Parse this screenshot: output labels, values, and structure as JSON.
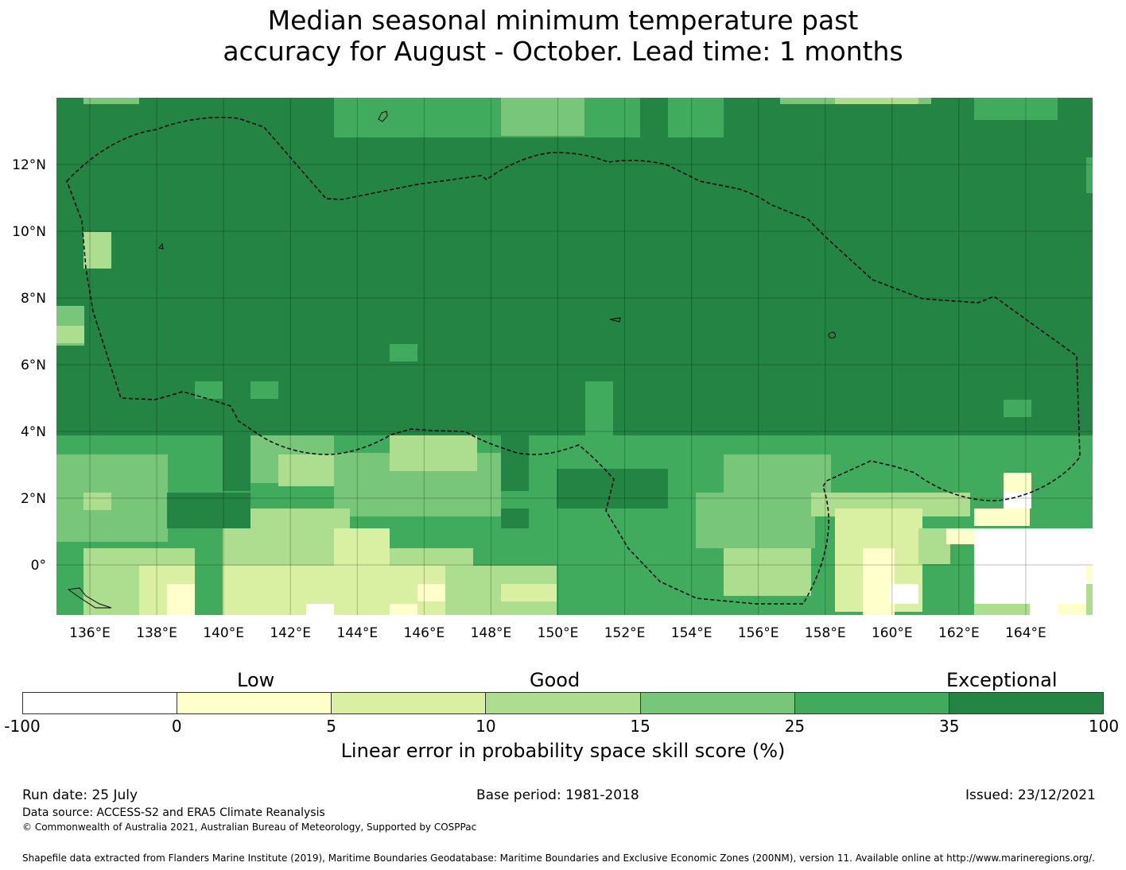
{
  "title_line1": "Median seasonal minimum temperature past",
  "title_line2": "accuracy for August - October. Lead time: 1 months",
  "map": {
    "lon_range": [
      135,
      166
    ],
    "lat_range": [
      -1.5,
      14
    ],
    "lon_ticks": [
      136,
      138,
      140,
      142,
      144,
      146,
      148,
      150,
      152,
      154,
      156,
      158,
      160,
      162,
      164
    ],
    "lon_tick_labels": [
      "136°E",
      "138°E",
      "140°E",
      "142°E",
      "144°E",
      "146°E",
      "148°E",
      "150°E",
      "152°E",
      "154°E",
      "156°E",
      "158°E",
      "160°E",
      "162°E",
      "164°E"
    ],
    "lat_ticks": [
      12,
      10,
      8,
      6,
      4,
      2,
      0
    ],
    "lat_tick_labels": [
      "12°N",
      "10°N",
      "8°N",
      "6°N",
      "4°N",
      "2°N",
      "0°"
    ],
    "grid": true,
    "boundary": "dashed EEZ outline"
  },
  "colorbar": {
    "categories": [
      {
        "label": "Low"
      },
      {
        "label": "Good"
      },
      {
        "label": "Exceptional"
      }
    ],
    "colors": [
      "#ffffff",
      "#ffffcc",
      "#d9f0a3",
      "#addd8e",
      "#78c679",
      "#41ab5d",
      "#238443"
    ],
    "boundaries": [
      "-100",
      "0",
      "5",
      "10",
      "15",
      "25",
      "35",
      "100"
    ],
    "label": "Linear error in probability space skill score (%)"
  },
  "footer": {
    "run_date": "Run date: 25 July",
    "base_period": "Base period: 1981-2018",
    "issued": "Issued: 23/12/2021",
    "data_source": "Data source: ACCESS-S2 and ERA5 Climate Reanalysis",
    "copyright": "© Commonwealth of Australia 2021, Australian Bureau of Meteorology, Supported by COSPPac",
    "shapefile": "Shapefile data extracted from Flanders Marine Institute (2019), Maritime Boundaries Geodatabase: Maritime Boundaries and Exclusive Economic Zones (200NM), version 11. Available online at http://www.marineregions.org/."
  }
}
